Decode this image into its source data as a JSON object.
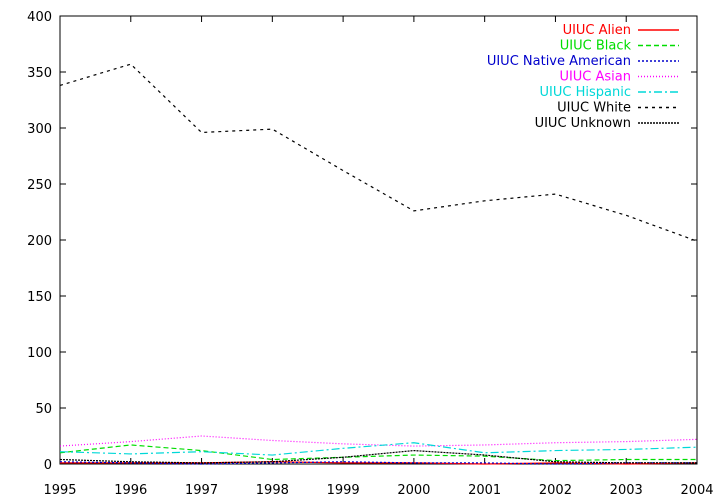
{
  "chart_data": {
    "type": "line",
    "x": [
      1995,
      1996,
      1997,
      1998,
      1999,
      2000,
      2001,
      2002,
      2003,
      2004
    ],
    "xlim": [
      1995,
      2004
    ],
    "ylim": [
      0,
      400
    ],
    "xticks": [
      1995,
      1996,
      1997,
      1998,
      1999,
      2000,
      2001,
      2002,
      2003,
      2004
    ],
    "yticks": [
      0,
      50,
      100,
      150,
      200,
      250,
      300,
      350,
      400
    ],
    "grid": false,
    "legend_position": "top-right",
    "series": [
      {
        "name": "UIUC Alien",
        "color": "#ff0000",
        "dash": "solid",
        "values": [
          1,
          1,
          1,
          2,
          1,
          1,
          0,
          1,
          0,
          1
        ]
      },
      {
        "name": "UIUC Black",
        "color": "#00dd00",
        "dash": "5,3",
        "values": [
          10,
          17,
          12,
          4,
          6,
          8,
          7,
          3,
          4,
          4
        ]
      },
      {
        "name": "UIUC Native American",
        "color": "#0000cc",
        "dash": "2,2",
        "values": [
          2,
          1,
          0,
          1,
          2,
          1,
          1,
          0,
          1,
          1
        ]
      },
      {
        "name": "UIUC Asian",
        "color": "#ff00ff",
        "dash": "1,2",
        "values": [
          16,
          20,
          25,
          21,
          18,
          16,
          17,
          19,
          20,
          22
        ]
      },
      {
        "name": "UIUC Hispanic",
        "color": "#00d8d8",
        "dash": "8,3,2,3",
        "values": [
          11,
          9,
          11,
          8,
          14,
          19,
          10,
          12,
          13,
          15
        ]
      },
      {
        "name": "UIUC White",
        "color": "#000000",
        "dash": "3,4",
        "values": [
          338,
          357,
          296,
          299,
          262,
          226,
          235,
          241,
          222,
          199
        ]
      },
      {
        "name": "UIUC Unknown",
        "color": "#000000",
        "dash": "2,1",
        "values": [
          4,
          2,
          1,
          2,
          6,
          12,
          8,
          2,
          1,
          1
        ]
      }
    ]
  }
}
